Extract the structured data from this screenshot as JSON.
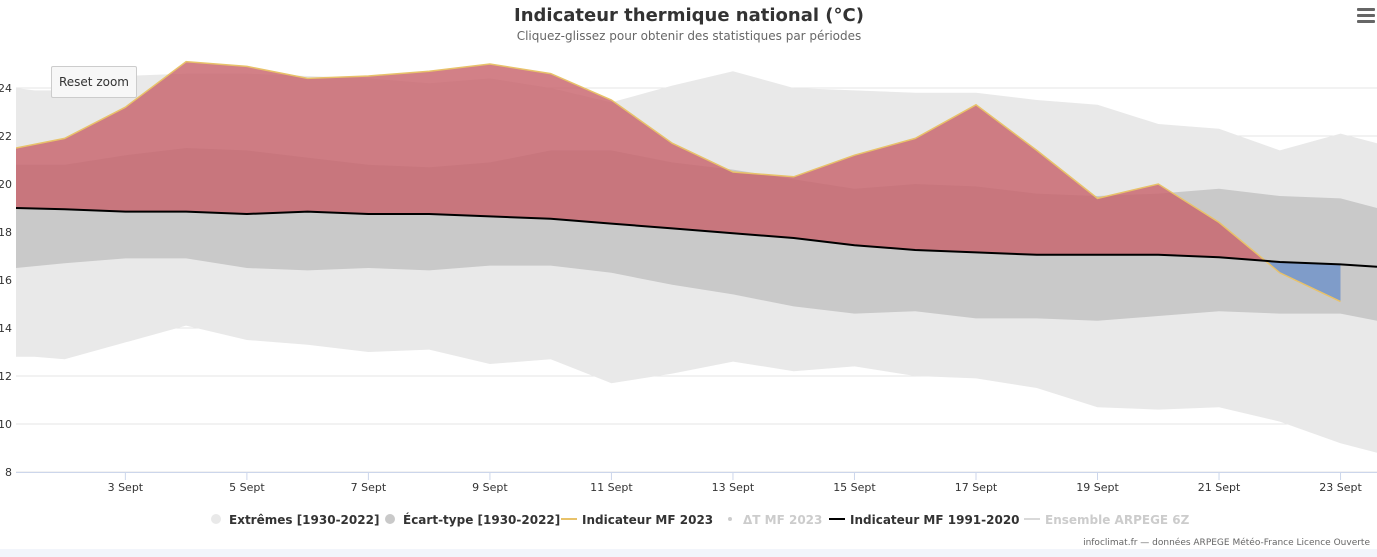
{
  "title": "Indicateur thermique national (°C)",
  "subtitle": "Cliquez-glissez pour obtenir des statistiques par périodes",
  "reset_zoom_label": "Reset zoom",
  "credits": "infoclimat.fr — données ARPEGE Météo-France Licence Ouverte",
  "menu_icon": "hamburger-menu-icon",
  "colors": {
    "extremes": "#e9e9e9",
    "stddev": "#c9c9c9",
    "above": "#c8646c",
    "below": "#6f93c9",
    "mf2023_line": "#e8c26a",
    "normal_line": "#000000",
    "grid": "#e6e6e6",
    "axis": "#ccd6eb"
  },
  "chart_data": {
    "type": "area",
    "xlabel": "",
    "ylabel": "",
    "x_range": [
      1.2,
      23.6
    ],
    "ylim": [
      8,
      25.5
    ],
    "y_ticks": [
      8,
      10,
      12,
      14,
      16,
      18,
      20,
      22,
      24
    ],
    "x_ticks": [
      3,
      5,
      7,
      9,
      11,
      13,
      15,
      17,
      19,
      21,
      23
    ],
    "x_tick_labels": [
      "3 Sept",
      "5 Sept",
      "7 Sept",
      "9 Sept",
      "11 Sept",
      "13 Sept",
      "15 Sept",
      "17 Sept",
      "19 Sept",
      "21 Sept",
      "23 Sept"
    ],
    "grid": true,
    "legend_position": "bottom",
    "legend": [
      {
        "name": "Extrêmes [1930-2022]",
        "symbol": "circle",
        "color": "#e9e9e9",
        "visible": true
      },
      {
        "name": "Écart-type [1930-2022]",
        "symbol": "circle",
        "color": "#c9c9c9",
        "visible": true
      },
      {
        "name": "Indicateur MF 2023",
        "symbol": "line",
        "color": "#e8c26a",
        "visible": true
      },
      {
        "name": "ΔT MF 2023",
        "symbol": "dot",
        "color": "#cccccc",
        "visible": false
      },
      {
        "name": "Indicateur MF 1991-2020",
        "symbol": "line",
        "color": "#000000",
        "visible": true
      },
      {
        "name": "Ensemble ARPEGE 6Z",
        "symbol": "line",
        "color": "#cccccc",
        "visible": false
      }
    ],
    "series": [
      {
        "name": "Extrêmes [1930-2022]",
        "kind": "range",
        "x": [
          1.2,
          1.5,
          2,
          3,
          4,
          5,
          6,
          7,
          8,
          9,
          10,
          11,
          12,
          13,
          14,
          15,
          16,
          17,
          18,
          19,
          20,
          21,
          22,
          23,
          23.6
        ],
        "low": [
          12.8,
          12.8,
          12.7,
          13.4,
          14.1,
          13.5,
          13.3,
          13.0,
          13.1,
          12.5,
          12.7,
          11.7,
          12.1,
          12.6,
          12.2,
          12.4,
          12.0,
          11.9,
          11.5,
          10.7,
          10.6,
          10.7,
          10.1,
          9.2,
          8.8
        ],
        "high": [
          24.0,
          23.9,
          23.9,
          24.5,
          24.6,
          24.6,
          24.5,
          24.4,
          24.2,
          24.4,
          24.0,
          23.4,
          24.1,
          24.7,
          24.0,
          23.9,
          23.8,
          23.8,
          23.5,
          23.3,
          22.5,
          22.3,
          21.4,
          22.1,
          21.7
        ]
      },
      {
        "name": "Écart-type [1930-2022]",
        "kind": "range",
        "x": [
          1.2,
          2,
          3,
          4,
          5,
          6,
          7,
          8,
          9,
          10,
          11,
          12,
          13,
          14,
          15,
          16,
          17,
          18,
          19,
          20,
          21,
          22,
          23,
          23.6
        ],
        "low": [
          16.5,
          16.7,
          16.9,
          16.9,
          16.5,
          16.4,
          16.5,
          16.4,
          16.6,
          16.6,
          16.3,
          15.8,
          15.4,
          14.9,
          14.6,
          14.7,
          14.4,
          14.4,
          14.3,
          14.5,
          14.7,
          14.6,
          14.6,
          14.3
        ],
        "high": [
          20.8,
          20.8,
          21.2,
          21.5,
          21.4,
          21.1,
          20.8,
          20.7,
          20.9,
          21.4,
          21.4,
          20.9,
          20.6,
          20.2,
          19.8,
          20.0,
          19.9,
          19.6,
          19.5,
          19.6,
          19.8,
          19.5,
          19.4,
          19.0
        ]
      },
      {
        "name": "Indicateur MF 1991-2020",
        "kind": "line",
        "x": [
          1.2,
          2,
          3,
          4,
          5,
          6,
          7,
          8,
          9,
          10,
          11,
          12,
          13,
          14,
          15,
          16,
          17,
          18,
          19,
          20,
          21,
          22,
          23,
          23.6
        ],
        "y": [
          19.0,
          18.95,
          18.85,
          18.85,
          18.75,
          18.85,
          18.75,
          18.75,
          18.65,
          18.55,
          18.35,
          18.15,
          17.95,
          17.75,
          17.45,
          17.25,
          17.15,
          17.05,
          17.05,
          17.05,
          16.95,
          16.75,
          16.65,
          16.55
        ]
      },
      {
        "name": "Indicateur MF 2023",
        "kind": "line",
        "x": [
          1.2,
          2,
          3,
          4,
          5,
          6,
          7,
          8,
          9,
          10,
          11,
          12,
          13,
          14,
          15,
          16,
          17,
          18,
          19,
          20,
          21,
          22,
          23
        ],
        "y": [
          21.5,
          21.9,
          23.2,
          25.1,
          24.9,
          24.4,
          24.5,
          24.7,
          25.0,
          24.6,
          23.5,
          21.7,
          20.5,
          20.3,
          21.2,
          21.9,
          23.3,
          21.4,
          19.4,
          20.0,
          18.4,
          16.3,
          15.1
        ]
      }
    ]
  }
}
